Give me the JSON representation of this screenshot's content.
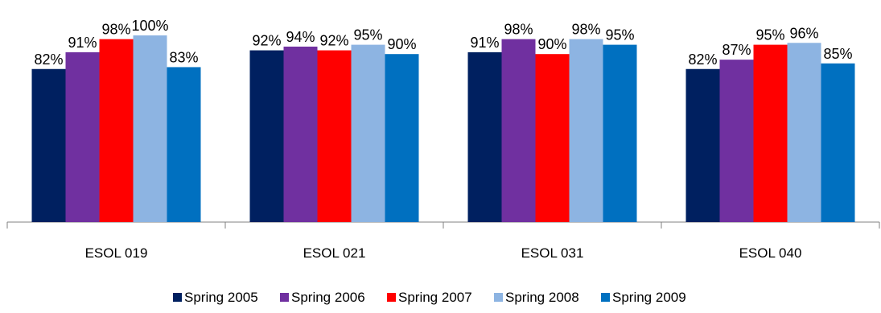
{
  "chart_data": {
    "type": "bar",
    "categories": [
      "ESOL 019",
      "ESOL 021",
      "ESOL 031",
      "ESOL 040"
    ],
    "series": [
      {
        "name": "Spring 2005",
        "color": "#002060",
        "values": [
          82,
          92,
          91,
          82
        ],
        "labels": [
          "82%",
          "92%",
          "91%",
          "82%"
        ]
      },
      {
        "name": "Spring 2006",
        "color": "#7030A0",
        "values": [
          91,
          94,
          98,
          87
        ],
        "labels": [
          "91%",
          "94%",
          "98%",
          "87%"
        ]
      },
      {
        "name": "Spring 2007",
        "color": "#FF0000",
        "values": [
          98,
          92,
          90,
          95
        ],
        "labels": [
          "98%",
          "92%",
          "90%",
          "95%"
        ]
      },
      {
        "name": "Spring 2008",
        "color": "#8DB4E2",
        "values": [
          100,
          95,
          98,
          96
        ],
        "labels": [
          "100%",
          "95%",
          "98%",
          "96%"
        ]
      },
      {
        "name": "Spring 2009",
        "color": "#0070C0",
        "values": [
          83,
          90,
          95,
          85
        ],
        "labels": [
          "83%",
          "90%",
          "95%",
          "85%"
        ]
      }
    ],
    "ylim": [
      0,
      100
    ],
    "grid": false,
    "legend": "bottom"
  }
}
